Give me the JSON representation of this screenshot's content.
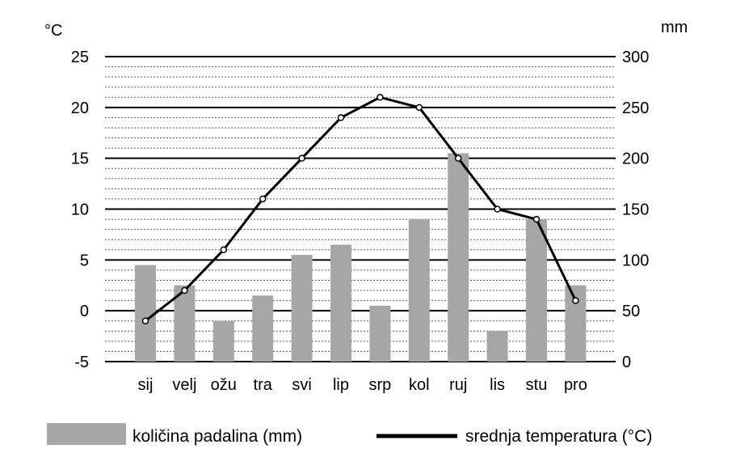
{
  "chart_data": {
    "type": "climate-diagram",
    "categories": [
      "sij",
      "velj",
      "ožu",
      "tra",
      "svi",
      "lip",
      "srp",
      "kol",
      "ruj",
      "lis",
      "stu",
      "pro"
    ],
    "series": [
      {
        "name": "količina padalina (mm)",
        "type": "bar",
        "axis": "right",
        "values": [
          95,
          75,
          40,
          65,
          105,
          115,
          55,
          140,
          205,
          30,
          140,
          75
        ]
      },
      {
        "name": "srednja temperatura (°C)",
        "type": "line",
        "axis": "left",
        "values": [
          -1,
          2,
          6,
          11,
          15,
          19,
          21,
          20,
          15,
          10,
          9,
          1
        ]
      }
    ],
    "left_axis": {
      "unit": "°C",
      "ylim": [
        -5,
        25
      ],
      "ticks": [
        "25",
        "20",
        "15",
        "10",
        "5",
        "0",
        "-5"
      ]
    },
    "right_axis": {
      "unit": "mm",
      "ylim": [
        0,
        300
      ],
      "ticks": [
        "300",
        "250",
        "200",
        "150",
        "100",
        "50",
        "0"
      ]
    },
    "grid": true,
    "legend_position": "bottom",
    "colors": {
      "bar": "#a6a6a6",
      "line": "#000000",
      "grid_major": "#000000",
      "grid_minor": "#555555"
    }
  }
}
